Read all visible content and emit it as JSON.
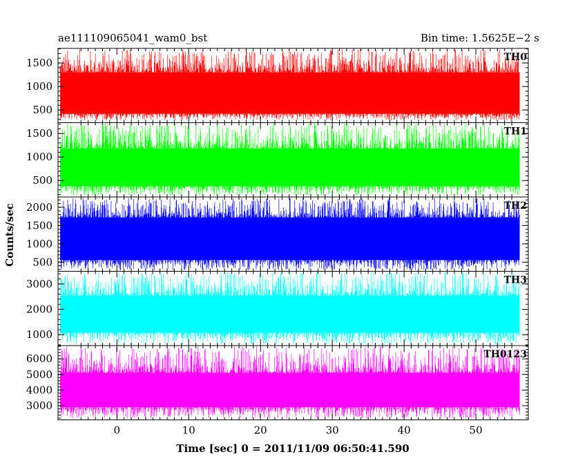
{
  "header": {
    "left": "ae111109065041_wam0_bst",
    "right": "Bin time: 1.5625E−2 s"
  },
  "chart_data": {
    "type": "line",
    "title": "ae111109065041_wam0_bst",
    "bin_time": "Bin time: 1.5625E−2 s",
    "xlabel": "Time [sec] 0 = 2011/11/09 06:50:41.590",
    "ylabel": "Counts/sec",
    "xlim": [
      -8.2,
      57.3
    ],
    "x_range": [
      -7.9,
      56.1
    ],
    "x_ticks": [
      0,
      10,
      20,
      30,
      40,
      50
    ],
    "x_tick_labels": [
      "0",
      "10",
      "20",
      "30",
      "40",
      "50"
    ],
    "panels": [
      {
        "name": "TH0",
        "color": "#ff0000",
        "ylim": [
          230,
          1810
        ],
        "y_ticks": [
          500,
          1000,
          1500
        ],
        "y_tick_labels": [
          "500",
          "1000",
          "1500"
        ],
        "low": 420,
        "high": 1300,
        "env_min": 280,
        "env_max": 1800
      },
      {
        "name": "TH1",
        "color": "#00ff00",
        "ylim": [
          150,
          1730
        ],
        "y_ticks": [
          500,
          1000,
          1500
        ],
        "y_tick_labels": [
          "500",
          "1000",
          "1500"
        ],
        "low": 380,
        "high": 1180,
        "env_min": 180,
        "env_max": 1720
      },
      {
        "name": "TH2",
        "color": "#0000ff",
        "ylim": [
          250,
          2280
        ],
        "y_ticks": [
          500,
          1000,
          1500,
          2000
        ],
        "y_tick_labels": [
          "500",
          "1000",
          "1500",
          "2000"
        ],
        "low": 560,
        "high": 1720,
        "env_min": 280,
        "env_max": 2270
      },
      {
        "name": "TH3",
        "color": "#00ffff",
        "ylim": [
          570,
          3500
        ],
        "y_ticks": [
          1000,
          2000,
          3000
        ],
        "y_tick_labels": [
          "1000",
          "2000",
          "3000"
        ],
        "low": 1080,
        "high": 2540,
        "env_min": 620,
        "env_max": 3480
      },
      {
        "name": "TH0123",
        "color": "#ff00ff",
        "ylim": [
          2090,
          6850
        ],
        "y_ticks": [
          3000,
          4000,
          5000,
          6000
        ],
        "y_tick_labels": [
          "3000",
          "4000",
          "5000",
          "6000"
        ],
        "low": 2900,
        "high": 5100,
        "env_min": 2150,
        "env_max": 6800
      }
    ]
  }
}
